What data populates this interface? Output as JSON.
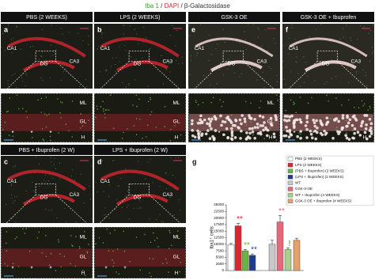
{
  "header": {
    "parts": [
      "Iba 1",
      " / ",
      "DAPI",
      " / β-Galactosidase"
    ]
  },
  "panels": [
    {
      "letter": "a",
      "title": "PBS (2 WEEKS)",
      "regions": [
        "CA1",
        "DG",
        "CA3"
      ],
      "zoom": [
        "ML",
        "GL",
        "H"
      ],
      "asterisks": [
        "*",
        "*",
        "*"
      ]
    },
    {
      "letter": "b",
      "title": "LPS (2 WEEKS)",
      "regions": [
        "CA1",
        "DG",
        "CA3"
      ],
      "zoom": [
        "ML",
        "GL",
        "H"
      ],
      "asterisks": []
    },
    {
      "letter": "e",
      "title": "GSK-3 OE",
      "regions": [
        "CA1",
        "DG",
        "CA3"
      ],
      "zoom": [
        "ML",
        "GL",
        "H"
      ],
      "asterisks": [
        "*",
        "*"
      ]
    },
    {
      "letter": "f",
      "title": "GSK-3 OE + Ibuprofen",
      "regions": [
        "CA1",
        "DG",
        "CA3"
      ],
      "zoom": [
        "H"
      ],
      "asterisks": [
        "*",
        "*"
      ]
    },
    {
      "letter": "c",
      "title": "PBS + Ibuprofen (2 W)",
      "regions": [
        "CA1",
        "DG",
        "CA3"
      ],
      "zoom": [
        "ML",
        "GL",
        "H"
      ],
      "asterisks": [
        "*",
        "*",
        "*"
      ]
    },
    {
      "letter": "d",
      "title": "LPS + Ibuprofen (2 W)",
      "regions": [
        "CA1",
        "DG",
        "CA3"
      ],
      "zoom": [
        "ML",
        "GL",
        "H"
      ],
      "asterisks": [
        "*",
        "*"
      ]
    }
  ],
  "chart_data": {
    "type": "bar",
    "letter": "g",
    "y_label": "Iba1⁺ cells",
    "ylim": [
      0,
      25000
    ],
    "yticks": [
      0,
      2500,
      5000,
      7500,
      10000,
      12500,
      15000,
      17500,
      20000,
      22500,
      25000
    ],
    "legend": "upper right",
    "series": [
      {
        "name": "PBS (2 WEEKS)",
        "color": "#ffffff",
        "values": [
          9800
        ],
        "errors": [
          500
        ]
      },
      {
        "name": "LPS (2 WEEKS)",
        "color": "#d7282f",
        "values": [
          17000
        ],
        "errors": [
          1000
        ],
        "annotation": "**"
      },
      {
        "name": "(PBS + Ibuprofen) (2 WEEKS)",
        "color": "#6db33f",
        "values": [
          7500
        ],
        "errors": [
          500
        ],
        "annotation": "**"
      },
      {
        "name": "(LPS + Ibuprofen) (2 WEEKS)",
        "color": "#1f3a93",
        "values": [
          5800
        ],
        "errors": [
          500
        ],
        "annotation": "**"
      },
      {
        "name": "WT",
        "color": "#c8c8c8",
        "values": [
          10000
        ],
        "errors": [
          1500
        ]
      },
      {
        "name": "GSK-3-OE",
        "color": "#e26a7a",
        "values": [
          18500
        ],
        "errors": [
          2500
        ],
        "annotation": "**"
      },
      {
        "name": "WT + Ibuprofen (4 WEEKS)",
        "color": "#a9cf8f",
        "values": [
          8000
        ],
        "errors": [
          600
        ],
        "annotation": "!"
      },
      {
        "name": "GSK-3 OE + Ibuprofen (4 WEEKS)",
        "color": "#e8a06a",
        "values": [
          11500
        ],
        "errors": [
          800
        ]
      }
    ]
  }
}
